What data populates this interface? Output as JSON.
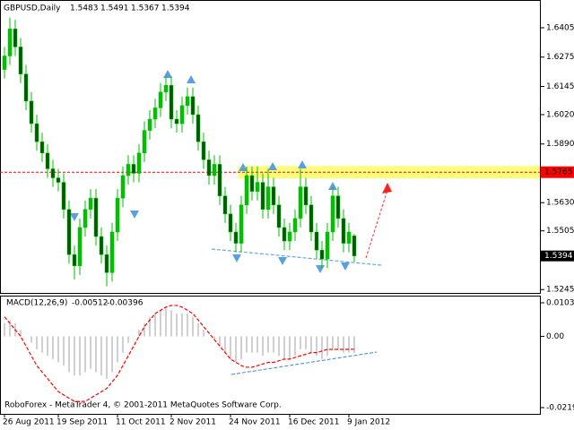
{
  "chart_data": [
    {
      "type": "candlestick",
      "title": "GBPUSD,Daily",
      "categories": [
        "26 Aug 2011",
        null,
        null,
        null,
        null,
        null,
        null,
        null,
        null,
        null,
        "19 Sep 2011",
        null,
        null,
        null,
        null,
        null,
        null,
        null,
        null,
        null,
        null,
        "11 Oct 2011",
        null,
        null,
        null,
        null,
        null,
        null,
        null,
        null,
        null,
        "2 Nov 2011",
        null,
        null,
        null,
        null,
        null,
        null,
        null,
        null,
        null,
        null,
        "24 Nov 2011",
        null,
        null,
        null,
        null,
        null,
        null,
        null,
        null,
        null,
        null,
        "16 Dec 2011",
        null,
        null,
        null,
        null,
        null,
        null,
        null,
        null,
        null,
        null,
        "9 Jan 2012",
        null
      ],
      "open": [
        1.622,
        1.628,
        1.64,
        1.632,
        1.62,
        1.608,
        1.598,
        1.59,
        1.585,
        1.578,
        1.574,
        1.572,
        1.56,
        1.54,
        1.535,
        1.552,
        1.56,
        1.565,
        1.548,
        1.54,
        1.532,
        1.55,
        1.565,
        1.575,
        1.58,
        1.576,
        1.585,
        1.595,
        1.6,
        1.605,
        1.612,
        1.615,
        1.6,
        1.598,
        1.606,
        1.61,
        1.602,
        1.59,
        1.582,
        1.575,
        1.58,
        1.566,
        1.558,
        1.55,
        1.545,
        1.562,
        1.575,
        1.568,
        1.572,
        1.56,
        1.57,
        1.562,
        1.552,
        1.546,
        1.55,
        1.556,
        1.57,
        1.562,
        1.55,
        1.542,
        1.538,
        1.55,
        1.566,
        1.556,
        1.545,
        1.5483
      ],
      "high": [
        1.632,
        1.645,
        1.644,
        1.636,
        1.624,
        1.612,
        1.602,
        1.594,
        1.589,
        1.582,
        1.578,
        1.576,
        1.564,
        1.544,
        1.556,
        1.564,
        1.569,
        1.569,
        1.552,
        1.544,
        1.554,
        1.569,
        1.579,
        1.584,
        1.584,
        1.589,
        1.599,
        1.604,
        1.609,
        1.616,
        1.619,
        1.619,
        1.604,
        1.61,
        1.614,
        1.614,
        1.606,
        1.594,
        1.586,
        1.584,
        1.584,
        1.57,
        1.562,
        1.554,
        1.566,
        1.579,
        1.579,
        1.579,
        1.576,
        1.578,
        1.574,
        1.566,
        1.556,
        1.554,
        1.56,
        1.578,
        1.574,
        1.566,
        1.554,
        1.546,
        1.554,
        1.57,
        1.57,
        1.56,
        1.554,
        1.5491
      ],
      "low": [
        1.618,
        1.624,
        1.628,
        1.616,
        1.604,
        1.594,
        1.586,
        1.581,
        1.574,
        1.57,
        1.568,
        1.556,
        1.536,
        1.529,
        1.531,
        1.548,
        1.556,
        1.544,
        1.536,
        1.526,
        1.528,
        1.546,
        1.561,
        1.571,
        1.572,
        1.572,
        1.581,
        1.591,
        1.596,
        1.601,
        1.608,
        1.596,
        1.594,
        1.594,
        1.602,
        1.598,
        1.586,
        1.578,
        1.571,
        1.571,
        1.562,
        1.554,
        1.546,
        1.541,
        1.541,
        1.558,
        1.564,
        1.564,
        1.556,
        1.556,
        1.558,
        1.548,
        1.542,
        1.542,
        1.546,
        1.552,
        1.558,
        1.546,
        1.538,
        1.534,
        1.534,
        1.546,
        1.552,
        1.541,
        1.541,
        1.5367
      ],
      "close": [
        1.628,
        1.64,
        1.632,
        1.62,
        1.608,
        1.598,
        1.59,
        1.585,
        1.578,
        1.574,
        1.572,
        1.56,
        1.54,
        1.535,
        1.552,
        1.56,
        1.565,
        1.548,
        1.54,
        1.532,
        1.55,
        1.565,
        1.575,
        1.58,
        1.576,
        1.585,
        1.595,
        1.6,
        1.605,
        1.612,
        1.615,
        1.6,
        1.598,
        1.606,
        1.61,
        1.602,
        1.59,
        1.582,
        1.575,
        1.58,
        1.566,
        1.558,
        1.55,
        1.545,
        1.562,
        1.575,
        1.568,
        1.572,
        1.56,
        1.57,
        1.562,
        1.552,
        1.546,
        1.55,
        1.556,
        1.57,
        1.562,
        1.55,
        1.542,
        1.538,
        1.55,
        1.566,
        1.556,
        1.545,
        1.55,
        1.5394
      ],
      "up_color": "#00c000",
      "down_color": "#005a00",
      "ylim": [
        1.523,
        1.6528
      ],
      "yticks": [
        1.6405,
        1.6275,
        1.6145,
        {
          "value": 1.602,
          "label": "1.6020"
        },
        {
          "value": 1.589,
          "label": "1.5890"
        },
        {
          "value": 1.563,
          "label": "1.5630"
        },
        1.5505,
        1.5245
      ],
      "level": 1.5765,
      "level_color": "#ff0000",
      "band_color": "#ffff66",
      "current_price": 1.5394
    },
    {
      "type": "macd",
      "title": "MACD(12,26,9)",
      "series": [
        {
          "type": "bar",
          "color": "#c0c0c0",
          "values": [
            0.004,
            0.005,
            0.004,
            0.002,
            0.0,
            -0.002,
            -0.004,
            -0.005,
            -0.006,
            -0.007,
            -0.008,
            -0.009,
            -0.011,
            -0.012,
            -0.012,
            -0.011,
            -0.01,
            -0.011,
            -0.012,
            -0.013,
            -0.011,
            -0.008,
            -0.005,
            -0.002,
            0.0,
            0.002,
            0.004,
            0.006,
            0.007,
            0.008,
            0.009,
            0.008,
            0.007,
            0.007,
            0.007,
            0.006,
            0.004,
            0.002,
            0.0,
            -0.001,
            -0.003,
            -0.005,
            -0.007,
            -0.008,
            -0.007,
            -0.005,
            -0.005,
            -0.005,
            -0.006,
            -0.005,
            -0.005,
            -0.006,
            -0.007,
            -0.007,
            -0.006,
            -0.004,
            -0.004,
            -0.005,
            -0.006,
            -0.007,
            -0.006,
            -0.004,
            -0.004,
            -0.005,
            -0.005,
            -0.00512
          ]
        },
        {
          "type": "line",
          "color": "#ff0000",
          "values": [
            0.006,
            0.004,
            0.002,
            0.0,
            -0.003,
            -0.006,
            -0.009,
            -0.011,
            -0.013,
            -0.015,
            -0.017,
            -0.018,
            -0.019,
            -0.02,
            -0.02,
            -0.02,
            -0.019,
            -0.018,
            -0.017,
            -0.016,
            -0.014,
            -0.012,
            -0.009,
            -0.006,
            -0.003,
            0.0,
            0.003,
            0.005,
            0.007,
            0.008,
            0.009,
            0.0095,
            0.0095,
            0.009,
            0.008,
            0.007,
            0.005,
            0.003,
            0.001,
            -0.001,
            -0.003,
            -0.005,
            -0.007,
            -0.008,
            -0.009,
            -0.0095,
            -0.0095,
            -0.009,
            -0.0085,
            -0.008,
            -0.008,
            -0.0075,
            -0.007,
            -0.007,
            -0.0065,
            -0.006,
            -0.0055,
            -0.005,
            -0.005,
            -0.0045,
            -0.004,
            -0.004,
            -0.004,
            -0.004,
            -0.004,
            -0.00396
          ]
        }
      ],
      "ylim": [
        -0.0219,
        0.01031
      ],
      "yticks": [
        0.01031,
        {
          "value": 0,
          "label": "0.00"
        },
        -0.0219
      ],
      "annotation": "RoboForex - MetaTrader 4, © 2001-2011 MetaQuotes Software Corp."
    }
  ]
}
